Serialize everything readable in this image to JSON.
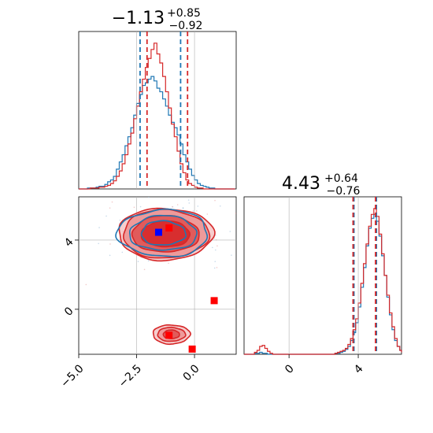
{
  "chart_data": {
    "type": "corner",
    "colors": {
      "blue": "#1f77b4",
      "red": "#d62728",
      "marker_blue": "#0000ff",
      "marker_red": "#ff0000",
      "grid": "#b0b0b0"
    },
    "params": [
      {
        "title_main": "−1.13",
        "title_sup": "+0.85",
        "title_sub": "−0.92"
      },
      {
        "title_main": "4.43",
        "title_sup": "+0.64",
        "title_sub": "−0.76"
      }
    ],
    "x_ticks_p1": [
      {
        "value": -5.0,
        "label": "−5.0"
      },
      {
        "value": -2.5,
        "label": "−2.5"
      },
      {
        "value": 0.0,
        "label": "0.0"
      }
    ],
    "y_ticks_p2": [
      {
        "value": 4,
        "label": "4"
      },
      {
        "value": 0,
        "label": "0"
      }
    ],
    "x_ticks_p2": [
      {
        "value": 0,
        "label": "0"
      },
      {
        "value": 4,
        "label": "4"
      }
    ],
    "ranges": {
      "p1": [
        -5.0,
        1.8
      ],
      "p2": [
        -2.6,
        6.5
      ]
    },
    "hist_p1": {
      "bin_start": -5.0,
      "bin_width": 0.125,
      "blue": [
        0,
        0,
        0,
        1,
        1,
        1,
        2,
        3,
        3,
        5,
        8,
        10,
        14,
        22,
        30,
        38,
        48,
        58,
        68,
        82,
        95,
        105,
        115,
        118,
        122,
        125,
        120,
        112,
        108,
        100,
        92,
        82,
        74,
        68,
        60,
        50,
        38,
        30,
        22,
        15,
        10,
        6,
        4,
        3,
        2,
        1,
        1,
        0,
        0,
        0,
        0,
        0,
        0,
        0
      ],
      "red": [
        0,
        0,
        0,
        0,
        1,
        1,
        1,
        2,
        2,
        3,
        4,
        6,
        9,
        14,
        20,
        28,
        38,
        50,
        62,
        78,
        92,
        108,
        122,
        135,
        145,
        155,
        162,
        150,
        140,
        125,
        108,
        90,
        72,
        58,
        42,
        28,
        18,
        10,
        6,
        4,
        2,
        1,
        1,
        0,
        0,
        0,
        0,
        0,
        0,
        0,
        0,
        0,
        0,
        0
      ],
      "blue_lines": [
        -2.35,
        -0.6
      ],
      "red_lines": [
        -2.05,
        -0.3
      ]
    },
    "hist_p2": {
      "bin_start": -2.6,
      "bin_width": 0.15,
      "blue": [
        0,
        0,
        0,
        0,
        1,
        1,
        2,
        1,
        1,
        0,
        0,
        0,
        0,
        0,
        0,
        0,
        0,
        0,
        0,
        0,
        0,
        0,
        0,
        0,
        0,
        0,
        0,
        0,
        0,
        0,
        0,
        0,
        0,
        0,
        0,
        1,
        1,
        2,
        3,
        5,
        8,
        14,
        22,
        32,
        48,
        68,
        88,
        110,
        128,
        138,
        142,
        135,
        120,
        100,
        80,
        58,
        40,
        25,
        14,
        8,
        4,
        2
      ],
      "red": [
        0,
        0,
        0,
        0,
        2,
        4,
        8,
        9,
        6,
        3,
        1,
        0,
        0,
        0,
        0,
        0,
        0,
        0,
        0,
        0,
        0,
        0,
        0,
        0,
        0,
        0,
        0,
        0,
        0,
        0,
        0,
        0,
        0,
        0,
        0,
        1,
        2,
        3,
        4,
        6,
        10,
        16,
        25,
        36,
        52,
        72,
        92,
        112,
        130,
        142,
        148,
        140,
        122,
        102,
        80,
        60,
        42,
        28,
        16,
        8,
        4,
        2
      ],
      "blue_lines": [
        3.75,
        5.05
      ],
      "red_lines": [
        3.7,
        5.0
      ]
    },
    "markers": [
      {
        "x": -1.55,
        "y": 4.45,
        "color": "marker_blue"
      },
      {
        "x": -1.1,
        "y": 4.7,
        "color": "marker_red"
      },
      {
        "x": 0.85,
        "y": 0.5,
        "color": "marker_red"
      },
      {
        "x": -1.1,
        "y": -1.5,
        "color": "marker_red"
      },
      {
        "x": -0.1,
        "y": -2.3,
        "color": "marker_red"
      }
    ],
    "contours": {
      "red_main": {
        "cx": -1.25,
        "cy": 4.35,
        "levels": [
          [
            1.05,
            0.75
          ],
          [
            1.45,
            1.05
          ],
          [
            1.85,
            1.4
          ],
          [
            2.05,
            1.5
          ]
        ]
      },
      "blue_main": {
        "cx": -1.35,
        "cy": 4.4,
        "levels": [
          [
            0.95,
            0.7
          ],
          [
            1.45,
            1.0
          ],
          [
            1.95,
            1.35
          ]
        ]
      },
      "red_small": {
        "cx": -1.0,
        "cy": -1.45,
        "levels": [
          [
            0.35,
            0.25
          ],
          [
            0.6,
            0.4
          ],
          [
            0.8,
            0.55
          ]
        ]
      }
    }
  }
}
